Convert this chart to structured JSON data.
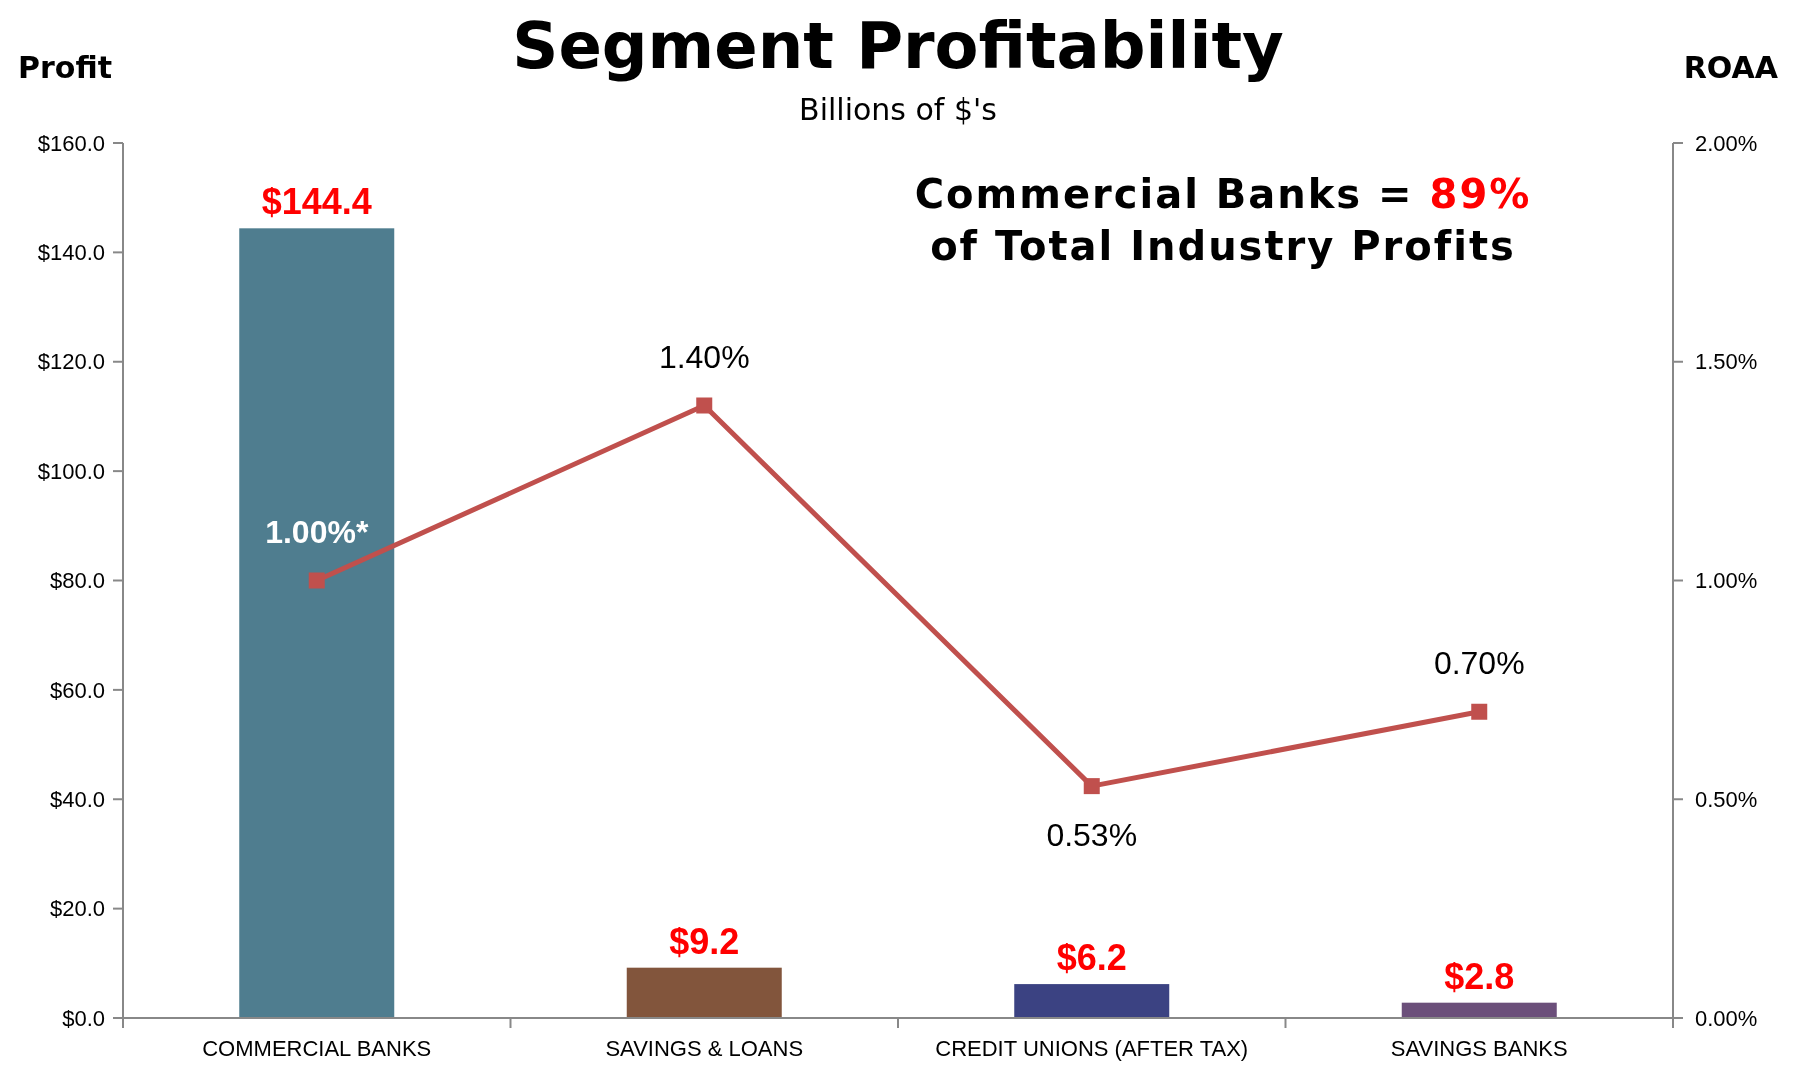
{
  "chart_data": {
    "type": "bar",
    "title": "Segment Profitability",
    "subtitle": "Billions of $'s",
    "ylabel": "Profit",
    "y2label": "ROAA",
    "categories": [
      "COMMERCIAL BANKS",
      "SAVINGS & LOANS",
      "CREDIT UNIONS (AFTER TAX)",
      "SAVINGS BANKS"
    ],
    "series": [
      {
        "colors": [
          "#4f7d8f",
          "#82553c",
          "#3b4282",
          "#6b4f7a"
        ],
        "values": [
          144.4,
          9.2,
          6.2,
          2.8
        ],
        "value_labels": [
          "$144.4",
          "$9.2",
          "$6.2",
          "$2.8"
        ]
      },
      {
        "type": "line",
        "axis": "y2",
        "color": "#c0504d",
        "values": [
          1.0,
          1.4,
          0.53,
          0.7
        ],
        "value_labels": [
          "1.00%*",
          "1.40%",
          "0.53%",
          "0.70%"
        ]
      }
    ],
    "ylim": [
      0,
      160
    ],
    "yticks": [
      {
        "value": 0,
        "label": "$0.0"
      },
      {
        "value": 20,
        "label": "$20.0"
      },
      {
        "value": 40,
        "label": "$40.0"
      },
      {
        "value": 60,
        "label": "$60.0"
      },
      {
        "value": 80,
        "label": "$80.0"
      },
      {
        "value": 100,
        "label": "$100.0"
      },
      {
        "value": 120,
        "label": "$120.0"
      },
      {
        "value": 140,
        "label": "$140.0"
      },
      {
        "value": 160,
        "label": "$160.0"
      }
    ],
    "y2lim": [
      0,
      2
    ],
    "y2ticks": [
      {
        "value": 0,
        "label": "0.00%"
      },
      {
        "value": 0.5,
        "label": "0.50%"
      },
      {
        "value": 1,
        "label": "1.00%"
      },
      {
        "value": 1.5,
        "label": "1.50%"
      },
      {
        "value": 2,
        "label": "2.00%"
      }
    ],
    "marker": "square",
    "grid": false,
    "annotations": [
      "Commercial Banks = 89%",
      "of Total Industry Profits"
    ]
  }
}
